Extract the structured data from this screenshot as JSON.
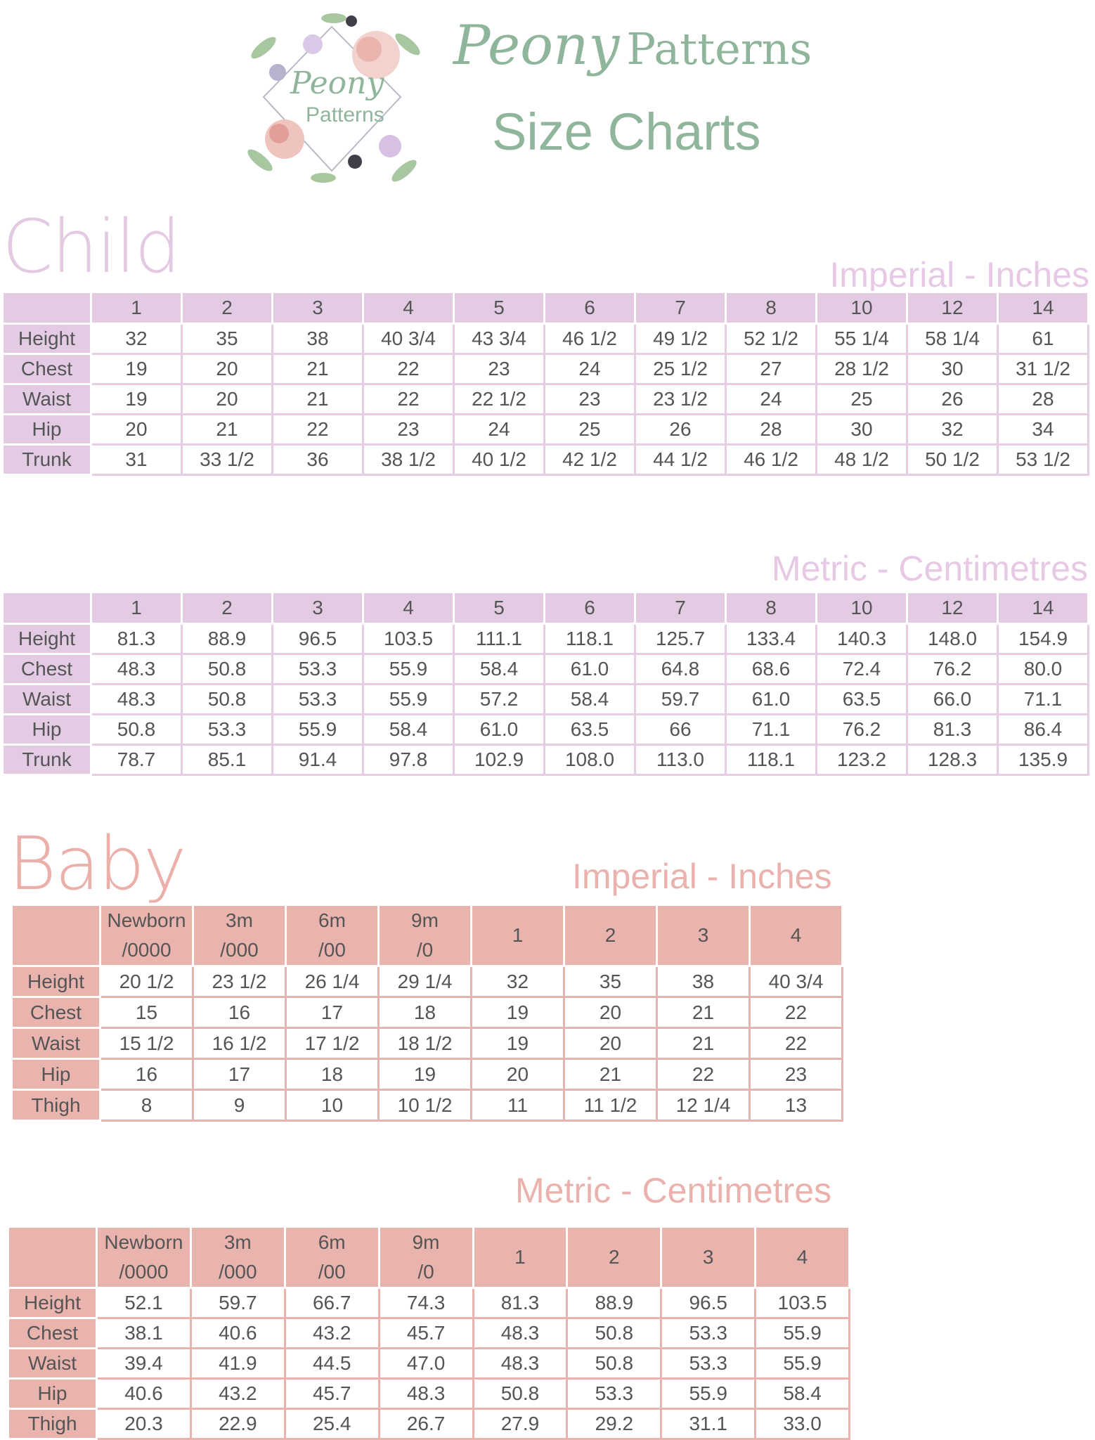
{
  "header": {
    "logo_text_1": "Peony",
    "logo_text_2": "Patterns",
    "title_script": "Peony",
    "title_rest": "Patterns",
    "subtitle": "Size Charts"
  },
  "child": {
    "title": "Child",
    "imperial": {
      "label": "Imperial - Inches",
      "sizes": [
        "1",
        "2",
        "3",
        "4",
        "5",
        "6",
        "7",
        "8",
        "10",
        "12",
        "14"
      ],
      "rows": [
        {
          "name": "Height",
          "values": [
            "32",
            "35",
            "38",
            "40 3/4",
            "43 3/4",
            "46 1/2",
            "49 1/2",
            "52 1/2",
            "55 1/4",
            "58 1/4",
            "61"
          ]
        },
        {
          "name": "Chest",
          "values": [
            "19",
            "20",
            "21",
            "22",
            "23",
            "24",
            "25 1/2",
            "27",
            "28 1/2",
            "30",
            "31 1/2"
          ]
        },
        {
          "name": "Waist",
          "values": [
            "19",
            "20",
            "21",
            "22",
            "22 1/2",
            "23",
            "23 1/2",
            "24",
            "25",
            "26",
            "28"
          ]
        },
        {
          "name": "Hip",
          "values": [
            "20",
            "21",
            "22",
            "23",
            "24",
            "25",
            "26",
            "28",
            "30",
            "32",
            "34"
          ]
        },
        {
          "name": "Trunk",
          "values": [
            "31",
            "33 1/2",
            "36",
            "38 1/2",
            "40 1/2",
            "42 1/2",
            "44 1/2",
            "46 1/2",
            "48 1/2",
            "50 1/2",
            "53 1/2"
          ]
        }
      ]
    },
    "metric": {
      "label": "Metric - Centimetres",
      "sizes": [
        "1",
        "2",
        "3",
        "4",
        "5",
        "6",
        "7",
        "8",
        "10",
        "12",
        "14"
      ],
      "rows": [
        {
          "name": "Height",
          "values": [
            "81.3",
            "88.9",
            "96.5",
            "103.5",
            "111.1",
            "118.1",
            "125.7",
            "133.4",
            "140.3",
            "148.0",
            "154.9"
          ]
        },
        {
          "name": "Chest",
          "values": [
            "48.3",
            "50.8",
            "53.3",
            "55.9",
            "58.4",
            "61.0",
            "64.8",
            "68.6",
            "72.4",
            "76.2",
            "80.0"
          ]
        },
        {
          "name": "Waist",
          "values": [
            "48.3",
            "50.8",
            "53.3",
            "55.9",
            "57.2",
            "58.4",
            "59.7",
            "61.0",
            "63.5",
            "66.0",
            "71.1"
          ]
        },
        {
          "name": "Hip",
          "values": [
            "50.8",
            "53.3",
            "55.9",
            "58.4",
            "61.0",
            "63.5",
            "66",
            "71.1",
            "76.2",
            "81.3",
            "86.4"
          ]
        },
        {
          "name": "Trunk",
          "values": [
            "78.7",
            "85.1",
            "91.4",
            "97.8",
            "102.9",
            "108.0",
            "113.0",
            "118.1",
            "123.2",
            "128.3",
            "135.9"
          ]
        }
      ]
    }
  },
  "baby": {
    "title": "Baby",
    "imperial": {
      "label": "Imperial - Inches",
      "sizes": [
        [
          "Newborn",
          "/0000"
        ],
        [
          "3m",
          "/000"
        ],
        [
          "6m",
          "/00"
        ],
        [
          "9m",
          "/0"
        ],
        [
          "1"
        ],
        [
          "2"
        ],
        [
          "3"
        ],
        [
          "4"
        ]
      ],
      "rows": [
        {
          "name": "Height",
          "values": [
            "20 1/2",
            "23 1/2",
            "26 1/4",
            "29 1/4",
            "32",
            "35",
            "38",
            "40 3/4"
          ]
        },
        {
          "name": "Chest",
          "values": [
            "15",
            "16",
            "17",
            "18",
            "19",
            "20",
            "21",
            "22"
          ]
        },
        {
          "name": "Waist",
          "values": [
            "15 1/2",
            "16 1/2",
            "17 1/2",
            "18 1/2",
            "19",
            "20",
            "21",
            "22"
          ]
        },
        {
          "name": "Hip",
          "values": [
            "16",
            "17",
            "18",
            "19",
            "20",
            "21",
            "22",
            "23"
          ]
        },
        {
          "name": "Thigh",
          "values": [
            "8",
            "9",
            "10",
            "10 1/2",
            "11",
            "11 1/2",
            "12 1/4",
            "13"
          ]
        }
      ]
    },
    "metric": {
      "label": "Metric - Centimetres",
      "sizes": [
        [
          "Newborn",
          "/0000"
        ],
        [
          "3m",
          "/000"
        ],
        [
          "6m",
          "/00"
        ],
        [
          "9m",
          "/0"
        ],
        [
          "1"
        ],
        [
          "2"
        ],
        [
          "3"
        ],
        [
          "4"
        ]
      ],
      "rows": [
        {
          "name": "Height",
          "values": [
            "52.1",
            "59.7",
            "66.7",
            "74.3",
            "81.3",
            "88.9",
            "96.5",
            "103.5"
          ]
        },
        {
          "name": "Chest",
          "values": [
            "38.1",
            "40.6",
            "43.2",
            "45.7",
            "48.3",
            "50.8",
            "53.3",
            "55.9"
          ]
        },
        {
          "name": "Waist",
          "values": [
            "39.4",
            "41.9",
            "44.5",
            "47.0",
            "48.3",
            "50.8",
            "53.3",
            "55.9"
          ]
        },
        {
          "name": "Hip",
          "values": [
            "40.6",
            "43.2",
            "45.7",
            "48.3",
            "50.8",
            "53.3",
            "55.9",
            "58.4"
          ]
        },
        {
          "name": "Thigh",
          "values": [
            "20.3",
            "22.9",
            "25.4",
            "26.7",
            "27.9",
            "29.2",
            "31.1",
            "33.0"
          ]
        }
      ]
    }
  }
}
